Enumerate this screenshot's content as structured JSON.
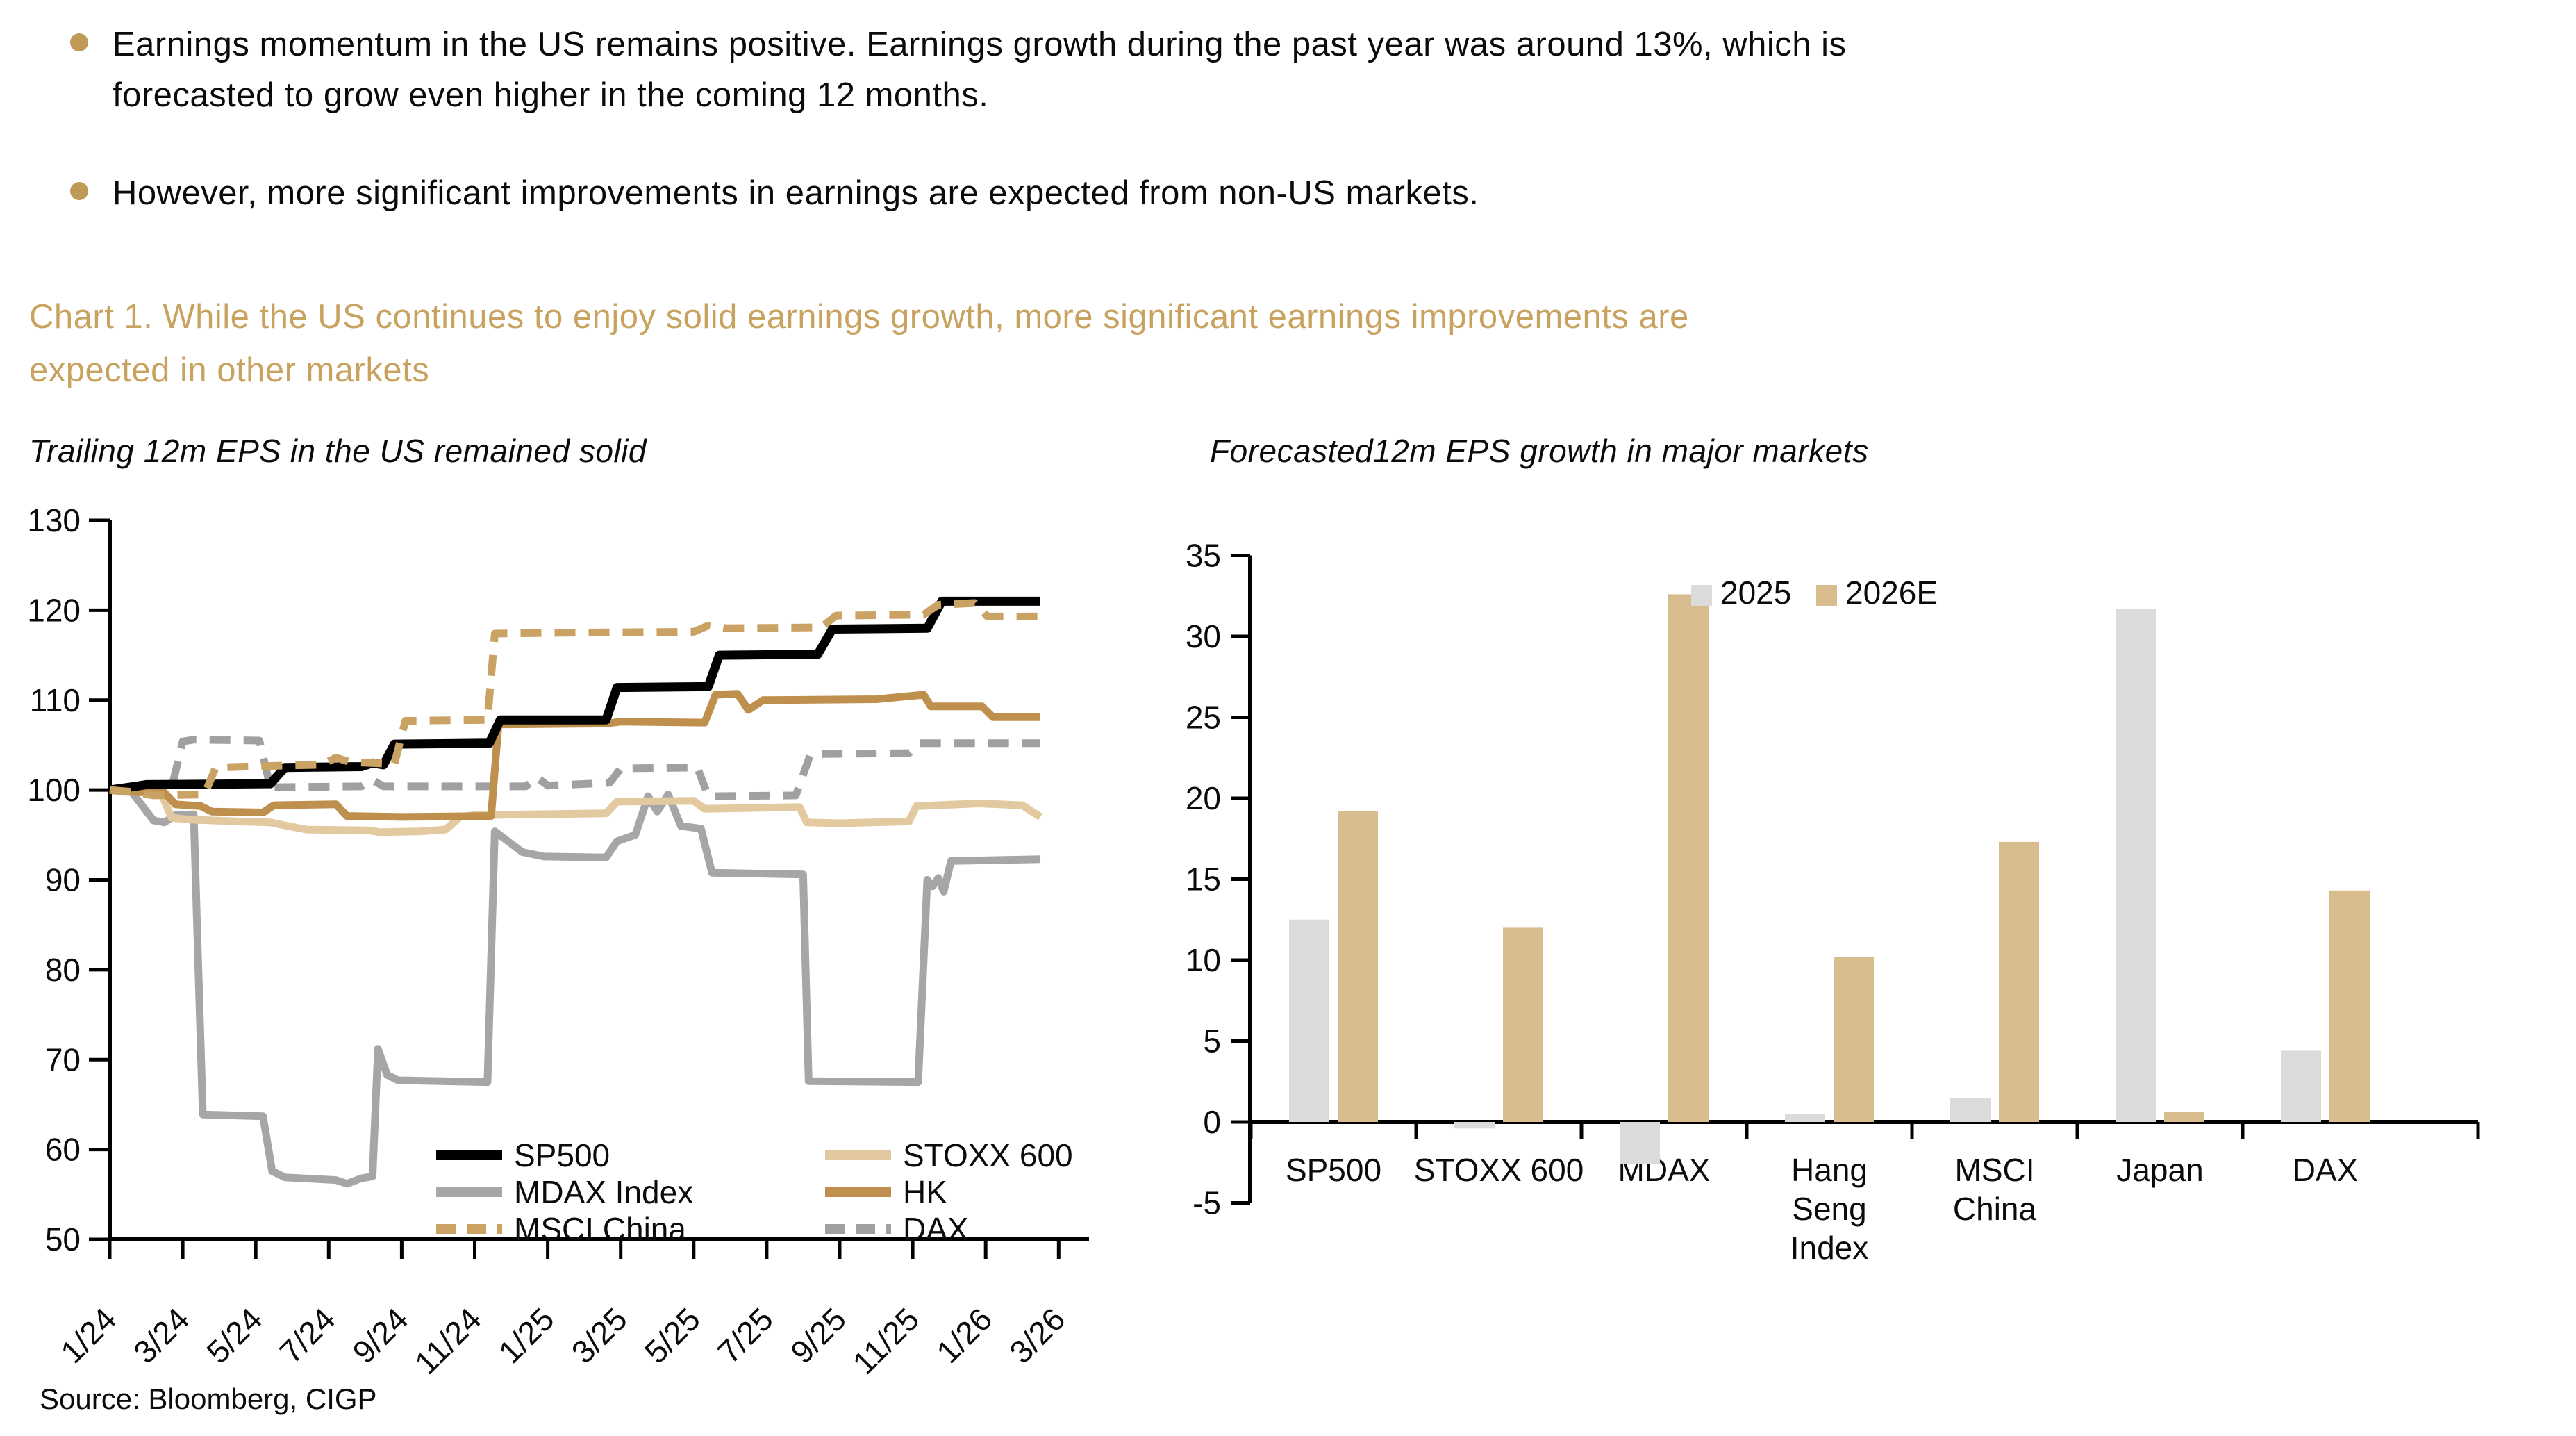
{
  "document": {
    "bullets": [
      {
        "lines": [
          "Earnings momentum in the US remains positive. Earnings growth during the past year was around 13%, which is",
          "forecasted to grow even higher in the coming 12 months."
        ]
      },
      {
        "lines": [
          "However, more significant improvements in earnings are expected from non-US markets."
        ]
      }
    ],
    "chart_heading_lines": [
      "Chart 1. While the US continues to enjoy solid earnings growth, more significant earnings improvements are",
      "expected in other markets"
    ],
    "source": "Source: Bloomberg, CIGP",
    "colors": {
      "heading": "#C8A360",
      "bullet_dot": "#BF9A56"
    }
  },
  "chart_data": [
    {
      "type": "line",
      "title": "Trailing 12m EPS in the US remained solid",
      "x_unit": "months since Jan 2024 (0 = 1/24)",
      "x_tick_labels": [
        "1/24",
        "3/24",
        "5/24",
        "7/24",
        "9/24",
        "11/24",
        "1/25",
        "3/25",
        "5/25",
        "7/25",
        "9/25",
        "11/25",
        "1/26",
        "3/26"
      ],
      "ylim": [
        50,
        130
      ],
      "yticks": [
        50,
        60,
        70,
        80,
        90,
        100,
        110,
        120,
        130
      ],
      "grid": false,
      "legend_position": "inside-bottom",
      "series": [
        {
          "name": "SP500",
          "color": "#000000",
          "style": "solid",
          "width": 13,
          "points": [
            [
              0,
              100
            ],
            [
              0.7,
              100.4
            ],
            [
              1.0,
              100.6
            ],
            [
              4.4,
              100.7
            ],
            [
              4.8,
              102.5
            ],
            [
              6.9,
              102.6
            ],
            [
              7.2,
              103.0
            ],
            [
              7.5,
              102.8
            ],
            [
              7.8,
              105.1
            ],
            [
              10.4,
              105.2
            ],
            [
              10.7,
              107.8
            ],
            [
              13.6,
              107.8
            ],
            [
              13.9,
              111.4
            ],
            [
              16.4,
              111.5
            ],
            [
              16.7,
              115.0
            ],
            [
              19.4,
              115.1
            ],
            [
              19.8,
              117.9
            ],
            [
              22.4,
              118.0
            ],
            [
              22.8,
              121.0
            ],
            [
              25.5,
              121.0
            ]
          ]
        },
        {
          "name": "MDAX Index",
          "color": "#A6A6A6",
          "style": "solid",
          "width": 11,
          "points": [
            [
              0,
              100
            ],
            [
              0.6,
              99.8
            ],
            [
              1.2,
              96.6
            ],
            [
              1.5,
              96.4
            ],
            [
              1.8,
              97.2
            ],
            [
              2.3,
              97.3
            ],
            [
              2.55,
              63.9
            ],
            [
              4.2,
              63.7
            ],
            [
              4.45,
              57.6
            ],
            [
              4.8,
              56.9
            ],
            [
              6.2,
              56.6
            ],
            [
              6.5,
              56.2
            ],
            [
              6.9,
              56.8
            ],
            [
              7.2,
              57.0
            ],
            [
              7.35,
              71.2
            ],
            [
              7.6,
              68.3
            ],
            [
              7.9,
              67.7
            ],
            [
              10.35,
              67.5
            ],
            [
              10.55,
              95.4
            ],
            [
              11.3,
              93.1
            ],
            [
              11.9,
              92.6
            ],
            [
              13.6,
              92.5
            ],
            [
              13.9,
              94.3
            ],
            [
              14.4,
              95.0
            ],
            [
              14.75,
              99.3
            ],
            [
              15.0,
              97.6
            ],
            [
              15.3,
              99.5
            ],
            [
              15.65,
              96.0
            ],
            [
              16.2,
              95.7
            ],
            [
              16.5,
              90.8
            ],
            [
              19.0,
              90.6
            ],
            [
              19.15,
              67.6
            ],
            [
              22.15,
              67.5
            ],
            [
              22.4,
              90.0
            ],
            [
              22.55,
              89.3
            ],
            [
              22.7,
              90.2
            ],
            [
              22.85,
              88.7
            ],
            [
              23.05,
              92.1
            ],
            [
              25.5,
              92.3
            ]
          ]
        },
        {
          "name": "MSCI China",
          "color": "#C9A264",
          "style": "dashed",
          "width": 11,
          "points": [
            [
              0,
              100
            ],
            [
              0.6,
              99.8
            ],
            [
              1.2,
              99.4
            ],
            [
              2.6,
              99.5
            ],
            [
              2.9,
              102.5
            ],
            [
              4.6,
              102.7
            ],
            [
              5.8,
              102.8
            ],
            [
              6.2,
              103.6
            ],
            [
              6.6,
              103.1
            ],
            [
              7.8,
              102.9
            ],
            [
              8.1,
              107.7
            ],
            [
              10.35,
              107.8
            ],
            [
              10.55,
              117.4
            ],
            [
              12.5,
              117.5
            ],
            [
              16.0,
              117.6
            ],
            [
              16.4,
              118.3
            ],
            [
              16.9,
              118.0
            ],
            [
              19.5,
              118.1
            ],
            [
              19.9,
              119.4
            ],
            [
              22.3,
              119.5
            ],
            [
              22.7,
              120.6
            ],
            [
              23.7,
              120.8
            ],
            [
              24.05,
              119.3
            ],
            [
              25.5,
              119.3
            ]
          ]
        },
        {
          "name": "STOXX 600",
          "color": "#E3C9A0",
          "style": "solid",
          "width": 11,
          "points": [
            [
              0,
              100
            ],
            [
              0.4,
              99.8
            ],
            [
              1.4,
              99.7
            ],
            [
              1.7,
              96.9
            ],
            [
              2.2,
              96.7
            ],
            [
              3.5,
              96.5
            ],
            [
              4.4,
              96.4
            ],
            [
              5.0,
              95.9
            ],
            [
              5.4,
              95.6
            ],
            [
              7.1,
              95.5
            ],
            [
              7.4,
              95.3
            ],
            [
              8.5,
              95.4
            ],
            [
              9.2,
              95.6
            ],
            [
              9.6,
              97.0
            ],
            [
              10.0,
              97.2
            ],
            [
              13.6,
              97.4
            ],
            [
              13.9,
              98.7
            ],
            [
              16.0,
              98.8
            ],
            [
              16.3,
              97.9
            ],
            [
              18.9,
              98.1
            ],
            [
              19.1,
              96.4
            ],
            [
              20.0,
              96.3
            ],
            [
              21.9,
              96.5
            ],
            [
              22.1,
              98.2
            ],
            [
              23.8,
              98.5
            ],
            [
              25.0,
              98.3
            ],
            [
              25.5,
              97.0
            ]
          ]
        },
        {
          "name": "HK",
          "color": "#BE8F4D",
          "style": "solid",
          "width": 11,
          "points": [
            [
              0,
              100
            ],
            [
              0.5,
              99.8
            ],
            [
              1.5,
              99.7
            ],
            [
              1.8,
              98.4
            ],
            [
              2.5,
              98.2
            ],
            [
              2.8,
              97.6
            ],
            [
              4.2,
              97.5
            ],
            [
              4.5,
              98.3
            ],
            [
              6.2,
              98.4
            ],
            [
              6.5,
              97.1
            ],
            [
              8.0,
              97.0
            ],
            [
              10.45,
              97.1
            ],
            [
              10.65,
              107.3
            ],
            [
              13.6,
              107.4
            ],
            [
              14.0,
              107.6
            ],
            [
              16.3,
              107.5
            ],
            [
              16.6,
              110.6
            ],
            [
              17.2,
              110.7
            ],
            [
              17.5,
              108.9
            ],
            [
              17.9,
              110.0
            ],
            [
              21.0,
              110.1
            ],
            [
              22.3,
              110.6
            ],
            [
              22.5,
              109.3
            ],
            [
              23.9,
              109.3
            ],
            [
              24.2,
              108.1
            ],
            [
              25.5,
              108.1
            ]
          ]
        },
        {
          "name": "DAX",
          "color": "#A0A0A0",
          "style": "dashed",
          "width": 11,
          "points": [
            [
              0,
              100
            ],
            [
              0.4,
              100.0
            ],
            [
              1.7,
              100.3
            ],
            [
              2.0,
              105.4
            ],
            [
              2.3,
              105.6
            ],
            [
              4.1,
              105.5
            ],
            [
              4.4,
              100.3
            ],
            [
              6.9,
              100.4
            ],
            [
              7.2,
              101.1
            ],
            [
              7.5,
              100.4
            ],
            [
              11.4,
              100.4
            ],
            [
              11.7,
              101.4
            ],
            [
              12.0,
              100.5
            ],
            [
              13.7,
              100.8
            ],
            [
              14.0,
              102.4
            ],
            [
              16.1,
              102.5
            ],
            [
              16.4,
              99.3
            ],
            [
              18.8,
              99.4
            ],
            [
              19.2,
              104.0
            ],
            [
              21.9,
              104.1
            ],
            [
              22.2,
              105.2
            ],
            [
              25.5,
              105.2
            ]
          ]
        }
      ],
      "legend_columns": [
        [
          "SP500",
          "MDAX Index",
          "MSCI China"
        ],
        [
          "STOXX 600",
          "HK",
          "DAX"
        ]
      ]
    },
    {
      "type": "bar",
      "title": "Forecasted12m EPS growth in major markets",
      "categories": [
        "SP500",
        "STOXX 600",
        "MDAX",
        "Hang Seng Index",
        "MSCI China",
        "Japan",
        "DAX"
      ],
      "category_label_lines": [
        [
          "SP500"
        ],
        [
          "STOXX 600"
        ],
        [
          "MDAX"
        ],
        [
          "Hang",
          "Seng",
          "Index"
        ],
        [
          "MSCI",
          "China"
        ],
        [
          "Japan"
        ],
        [
          "DAX"
        ]
      ],
      "series": [
        {
          "name": "2025",
          "color": "#DBDBDB",
          "values": [
            12.5,
            -0.4,
            -2.6,
            0.5,
            1.5,
            31.7,
            4.4
          ]
        },
        {
          "name": "2026E",
          "color": "#D8BC8E",
          "values": [
            19.2,
            12.0,
            32.6,
            10.2,
            17.3,
            0.6,
            14.3
          ]
        }
      ],
      "ylim": [
        -5,
        35
      ],
      "ytick_step": 5,
      "grid": false,
      "legend_position": "top-center"
    }
  ]
}
